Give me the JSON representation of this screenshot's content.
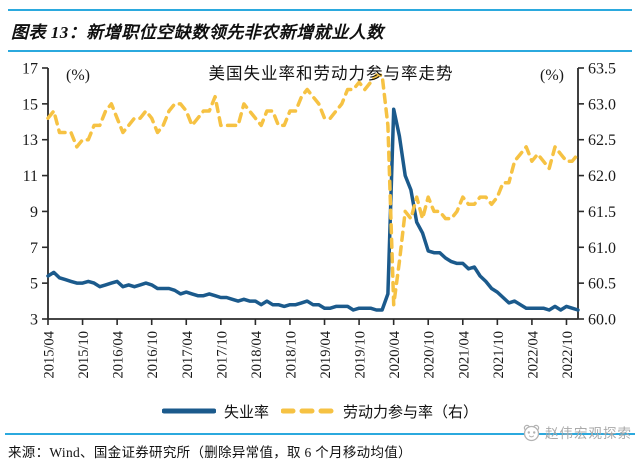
{
  "header": {
    "title": "图表 13：新增职位空缺数领先非农新增就业人数"
  },
  "chart_data": {
    "type": "line",
    "title": "美国失业率和劳动力参与率走势",
    "left_unit": "(%)",
    "right_unit": "(%)",
    "grid": false,
    "legend_position": "bottom",
    "x_freq": "monthly",
    "x_start": "2015/04",
    "x_end": "2022/12",
    "x_tick_labels": [
      "2015/04",
      "2015/10",
      "2016/04",
      "2016/10",
      "2017/04",
      "2017/10",
      "2018/04",
      "2018/10",
      "2019/04",
      "2019/10",
      "2020/04",
      "2020/10",
      "2021/04",
      "2021/10",
      "2022/04",
      "2022/10"
    ],
    "left_axis": {
      "min": 3,
      "max": 17,
      "step": 2
    },
    "right_axis": {
      "min": 60.0,
      "max": 63.5,
      "step": 0.5
    },
    "series": [
      {
        "key": "unemployment-rate",
        "name": "失业率",
        "axis": "left",
        "style": "solid",
        "color": "#1B5A8C",
        "values": [
          5.4,
          5.6,
          5.3,
          5.2,
          5.1,
          5.0,
          5.0,
          5.1,
          5.0,
          4.8,
          4.9,
          5.0,
          5.1,
          4.8,
          4.9,
          4.8,
          4.9,
          5.0,
          4.9,
          4.7,
          4.7,
          4.7,
          4.6,
          4.4,
          4.5,
          4.4,
          4.3,
          4.3,
          4.4,
          4.3,
          4.2,
          4.2,
          4.1,
          4.0,
          4.1,
          4.0,
          4.0,
          3.8,
          4.0,
          3.8,
          3.8,
          3.7,
          3.8,
          3.8,
          3.9,
          4.0,
          3.8,
          3.8,
          3.6,
          3.6,
          3.7,
          3.7,
          3.7,
          3.5,
          3.6,
          3.6,
          3.6,
          3.5,
          3.5,
          4.4,
          14.7,
          13.2,
          11.0,
          10.2,
          8.4,
          7.8,
          6.8,
          6.7,
          6.7,
          6.4,
          6.2,
          6.1,
          6.1,
          5.8,
          5.9,
          5.4,
          5.1,
          4.7,
          4.5,
          4.2,
          3.9,
          4.0,
          3.8,
          3.6,
          3.6,
          3.6,
          3.6,
          3.5,
          3.7,
          3.5,
          3.7,
          3.6,
          3.5
        ]
      },
      {
        "key": "labor-participation-rate",
        "name": "劳动力参与率（右）",
        "axis": "right",
        "style": "dashed",
        "color": "#F6C243",
        "values": [
          62.8,
          62.9,
          62.6,
          62.6,
          62.6,
          62.4,
          62.5,
          62.5,
          62.7,
          62.7,
          62.9,
          63.0,
          62.8,
          62.6,
          62.7,
          62.8,
          62.8,
          62.9,
          62.8,
          62.6,
          62.7,
          62.9,
          63.0,
          63.0,
          62.9,
          62.7,
          62.8,
          62.9,
          62.9,
          63.1,
          62.7,
          62.7,
          62.7,
          62.7,
          63.0,
          62.9,
          62.8,
          62.7,
          62.9,
          62.9,
          62.7,
          62.7,
          62.9,
          62.9,
          63.1,
          63.2,
          63.1,
          63.0,
          62.8,
          62.8,
          62.9,
          63.0,
          63.2,
          63.2,
          63.3,
          63.2,
          63.3,
          63.4,
          63.4,
          62.7,
          60.2,
          60.8,
          61.5,
          61.4,
          61.7,
          61.4,
          61.7,
          61.5,
          61.5,
          61.4,
          61.4,
          61.5,
          61.7,
          61.6,
          61.6,
          61.7,
          61.7,
          61.6,
          61.7,
          61.9,
          61.9,
          62.2,
          62.3,
          62.4,
          62.2,
          62.3,
          62.2,
          62.1,
          62.4,
          62.3,
          62.2,
          62.2,
          62.3
        ]
      }
    ]
  },
  "source": {
    "text": "来源：Wind、国金证券研究所（删除异常值，取 6 个月移动均值）"
  },
  "watermark": {
    "text": "赵伟宏观探索"
  },
  "colors": {
    "accent_rule": "#2BA9DE",
    "unemployment_line": "#1B5A8C",
    "participation_line": "#F6C243",
    "watermark_gray": "#A9A9A9",
    "axis": "#2B2B2B"
  }
}
